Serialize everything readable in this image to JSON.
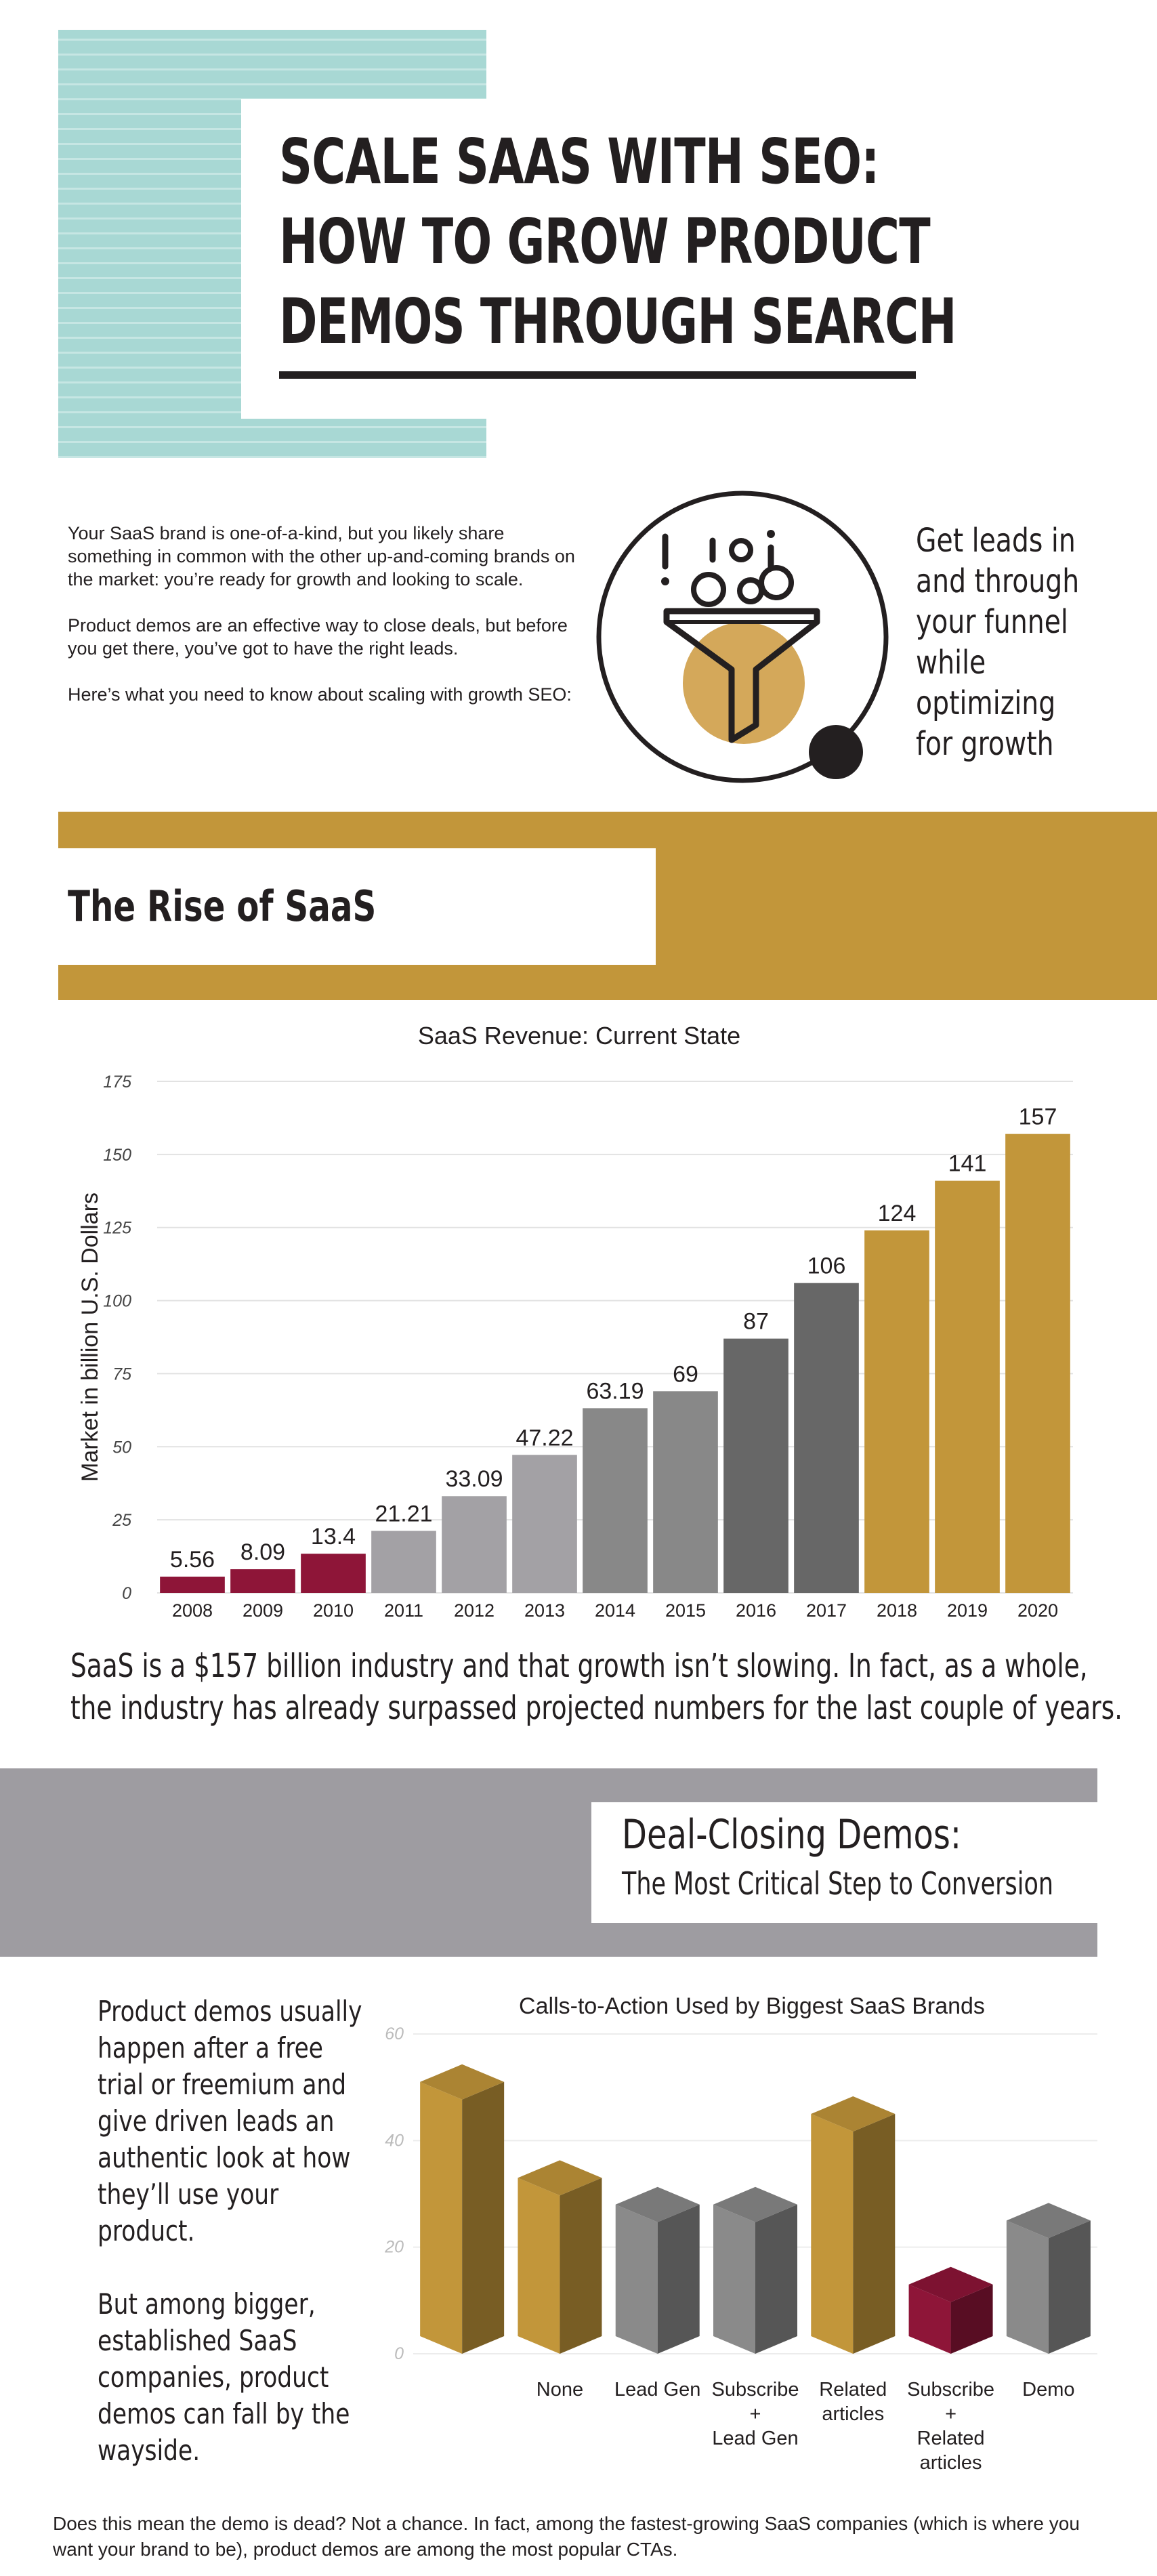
{
  "header": {
    "title_lines": [
      "SCALE SAAS WITH SEO:",
      "HOW TO GROW PRODUCT",
      "DEMOS THROUGH SEARCH"
    ]
  },
  "intro": {
    "paragraphs": [
      "Your SaaS brand is one-of-a-kind, but you likely share something in common with the other up-and-coming brands on the market: you’re ready for growth and looking to scale.",
      "Product demos are an effective way to close deals, but before you get there, you’ve got to have the right leads.",
      "Here’s what you need to know about scaling with growth SEO:"
    ],
    "funnel_icon": "funnel-icon",
    "funnel_text_lines": [
      "Get leads in",
      "and through",
      "your funnel",
      "while",
      "optimizing",
      "for growth"
    ]
  },
  "rise_section": {
    "title": "The Rise of SaaS"
  },
  "colors": {
    "gold": "#c2963a",
    "crimson": "#8e1538",
    "light_gray": "#a3a1a5",
    "mid_gray": "#888888",
    "dark_gray": "#676767",
    "band_gray": "#9e9ca1",
    "teal": "#a8d8d4"
  },
  "chart_data": [
    {
      "type": "bar",
      "title": "SaaS Revenue: Current State",
      "ylabel": "Market in billion U.S. Dollars",
      "xlabel": "",
      "categories": [
        "2008",
        "2009",
        "2010",
        "2011",
        "2012",
        "2013",
        "2014",
        "2015",
        "2016",
        "2017",
        "2018",
        "2019",
        "2020"
      ],
      "values": [
        5.56,
        8.09,
        13.4,
        21.21,
        33.09,
        47.22,
        63.19,
        69,
        87,
        106,
        124,
        141,
        157
      ],
      "value_labels": [
        "5.56",
        "8.09",
        "13.4",
        "21.21",
        "33.09",
        "47.22",
        "63.19",
        "69",
        "87",
        "106",
        "124",
        "141",
        "157"
      ],
      "bar_colors": [
        "#8e1538",
        "#8e1538",
        "#8e1538",
        "#a3a1a5",
        "#a3a1a5",
        "#a3a1a5",
        "#888888",
        "#888888",
        "#676767",
        "#676767",
        "#c2963a",
        "#c2963a",
        "#c2963a"
      ],
      "yticks": [
        "0",
        "25",
        "50",
        "75",
        "100",
        "125",
        "150",
        "175"
      ],
      "ylim": [
        0,
        175
      ],
      "grid": true
    },
    {
      "type": "bar",
      "title": "Calls-to-Action Used by Biggest SaaS Brands",
      "categories": [
        [
          ""
        ],
        [
          "None"
        ],
        [
          "Lead Gen"
        ],
        [
          "Subscribe",
          "+",
          "Lead Gen"
        ],
        [
          "Related",
          "articles"
        ],
        [
          "Subscribe",
          "+",
          "Related",
          "articles"
        ],
        [
          "Demo"
        ]
      ],
      "values": [
        51,
        33,
        28,
        28,
        45,
        13,
        25
      ],
      "bar_colors": [
        "#c2963a",
        "#c2963a",
        "#8a8a8a",
        "#8a8a8a",
        "#c2963a",
        "#8e1538",
        "#8a8a8a"
      ],
      "yticks": [
        "0",
        "20",
        "40",
        "60"
      ],
      "ylim": [
        0,
        60
      ],
      "grid": true
    }
  ],
  "summary_lines": [
    "SaaS is a $157 billion industry and that growth isn’t slowing. In fact, as a whole,",
    "the industry has already surpassed projected numbers for the last couple of years."
  ],
  "demos_section": {
    "title": "Deal-Closing Demos:",
    "subtitle": "The Most Critical Step to Conversion",
    "paragraph1_lines": [
      "Product demos usually",
      "happen after a free",
      "trial or freemium and",
      "give driven leads an",
      "authentic look at how",
      "they’ll use your",
      "product."
    ],
    "paragraph2_lines": [
      "But among bigger,",
      "established SaaS",
      "companies, product",
      "demos can fall by the",
      "wayside."
    ]
  },
  "footer": {
    "text": "Does this mean the demo is dead? Not a chance. In fact, among the fastest-growing SaaS companies (which is where you want your brand to be), product demos are among the most popular CTAs."
  }
}
